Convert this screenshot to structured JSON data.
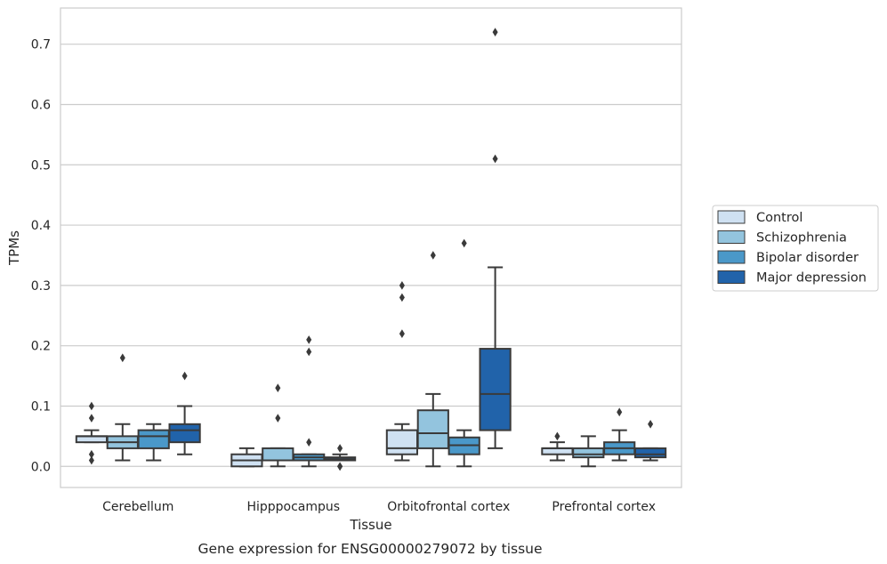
{
  "chart_data": {
    "type": "box",
    "caption": "Gene expression for ENSG00000279072 by tissue",
    "xlabel": "Tissue",
    "ylabel": "TPMs",
    "ylim": [
      -0.035,
      0.76
    ],
    "yticks": [
      0.0,
      0.1,
      0.2,
      0.3,
      0.4,
      0.5,
      0.6,
      0.7
    ],
    "ytick_labels": [
      "0.0",
      "0.1",
      "0.2",
      "0.3",
      "0.4",
      "0.5",
      "0.6",
      "0.7"
    ],
    "grid": "horizontal",
    "legend_position": "right",
    "categories": [
      "Cerebellum",
      "Hipppocampus",
      "Orbitofrontal cortex",
      "Prefrontal cortex"
    ],
    "series": [
      {
        "name": "Control",
        "color": "#cfe1f2",
        "boxes": [
          {
            "whislo": 0.04,
            "q1": 0.04,
            "med": 0.05,
            "q3": 0.05,
            "whishi": 0.06,
            "fliers": [
              0.1,
              0.08,
              0.02,
              0.01
            ]
          },
          {
            "whislo": 0.0,
            "q1": 0.0,
            "med": 0.01,
            "q3": 0.02,
            "whishi": 0.03,
            "fliers": []
          },
          {
            "whislo": 0.01,
            "q1": 0.02,
            "med": 0.03,
            "q3": 0.06,
            "whishi": 0.07,
            "fliers": [
              0.3,
              0.28,
              0.22
            ]
          },
          {
            "whislo": 0.01,
            "q1": 0.02,
            "med": 0.03,
            "q3": 0.03,
            "whishi": 0.04,
            "fliers": [
              0.05
            ]
          }
        ]
      },
      {
        "name": "Schizophrenia",
        "color": "#93c4de",
        "boxes": [
          {
            "whislo": 0.01,
            "q1": 0.03,
            "med": 0.04,
            "q3": 0.05,
            "whishi": 0.07,
            "fliers": [
              0.18
            ]
          },
          {
            "whislo": 0.0,
            "q1": 0.01,
            "med": 0.01,
            "q3": 0.03,
            "whishi": 0.03,
            "fliers": [
              0.13,
              0.08
            ]
          },
          {
            "whislo": 0.0,
            "q1": 0.03,
            "med": 0.055,
            "q3": 0.093,
            "whishi": 0.12,
            "fliers": [
              0.35
            ]
          },
          {
            "whislo": 0.0,
            "q1": 0.015,
            "med": 0.02,
            "q3": 0.03,
            "whishi": 0.05,
            "fliers": []
          }
        ]
      },
      {
        "name": "Bipolar disorder",
        "color": "#4a98c9",
        "boxes": [
          {
            "whislo": 0.01,
            "q1": 0.03,
            "med": 0.05,
            "q3": 0.06,
            "whishi": 0.07,
            "fliers": []
          },
          {
            "whislo": 0.0,
            "q1": 0.01,
            "med": 0.015,
            "q3": 0.02,
            "whishi": 0.02,
            "fliers": [
              0.21,
              0.19,
              0.04
            ]
          },
          {
            "whislo": 0.0,
            "q1": 0.02,
            "med": 0.035,
            "q3": 0.048,
            "whishi": 0.06,
            "fliers": [
              0.37
            ]
          },
          {
            "whislo": 0.01,
            "q1": 0.02,
            "med": 0.03,
            "q3": 0.04,
            "whishi": 0.06,
            "fliers": [
              0.09
            ]
          }
        ]
      },
      {
        "name": "Major depression",
        "color": "#2163aa",
        "boxes": [
          {
            "whislo": 0.02,
            "q1": 0.04,
            "med": 0.06,
            "q3": 0.07,
            "whishi": 0.1,
            "fliers": [
              0.15
            ]
          },
          {
            "whislo": 0.01,
            "q1": 0.01,
            "med": 0.012,
            "q3": 0.015,
            "whishi": 0.02,
            "fliers": [
              0.03,
              0.0,
              0.0
            ]
          },
          {
            "whislo": 0.03,
            "q1": 0.06,
            "med": 0.12,
            "q3": 0.195,
            "whishi": 0.33,
            "fliers": [
              0.72,
              0.51
            ]
          },
          {
            "whislo": 0.01,
            "q1": 0.015,
            "med": 0.02,
            "q3": 0.03,
            "whishi": 0.03,
            "fliers": [
              0.07
            ]
          }
        ]
      }
    ]
  }
}
